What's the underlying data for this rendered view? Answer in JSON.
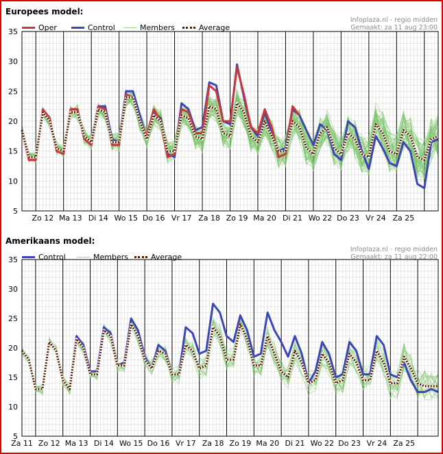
{
  "colors": {
    "frame": "#e00000",
    "oper": "#c8383a",
    "control": "#3b46b4",
    "members": "#7cc56a",
    "average": "#5a1a00",
    "average_gap": "#ffffff",
    "grid_minor": "#e2e2e2",
    "grid_day": "#000000"
  },
  "chart_data": [
    {
      "type": "line",
      "title": "Europees model:",
      "source": "Infoplaza.nl - regio midden",
      "made": "Gemaakt: za 11 aug 23:00",
      "legend": [
        "Oper",
        "Control",
        "Members",
        "Average"
      ],
      "ylim": [
        5,
        35
      ],
      "yticks": [
        5,
        10,
        15,
        20,
        25,
        30,
        35
      ],
      "xlim": [
        0,
        30
      ],
      "day_lines": [
        3,
        6,
        9,
        12,
        15,
        18,
        21,
        24,
        27,
        30,
        33,
        36,
        39,
        42,
        45,
        48,
        51,
        54,
        57
      ],
      "day_labels": [
        {
          "label": "Zo 12",
          "x": 1.5
        },
        {
          "label": "Ma 13",
          "x": 3.5
        },
        {
          "label": "Di 14",
          "x": 5.5
        },
        {
          "label": "Wo 15",
          "x": 7.5
        },
        {
          "label": "Do 16",
          "x": 9.5
        },
        {
          "label": "Vr 17",
          "x": 11.5
        },
        {
          "label": "Za 18",
          "x": 13.5
        },
        {
          "label": "Zo 19",
          "x": 15.5
        },
        {
          "label": "Ma 20",
          "x": 17.5
        },
        {
          "label": "Di 21",
          "x": 19.5
        },
        {
          "label": "Wo 22",
          "x": 21.5
        },
        {
          "label": "Do 23",
          "x": 23.5
        },
        {
          "label": "Vr 24",
          "x": 25.5
        },
        {
          "label": "Za 25",
          "x": 27.5
        }
      ],
      "day_boundaries": [
        1,
        3,
        5,
        7,
        9,
        11,
        13,
        15,
        17,
        19,
        21,
        23,
        25,
        27,
        29,
        30
      ],
      "series": [
        {
          "name": "Control",
          "x": [
            0,
            0.5,
            1,
            1.5,
            2,
            2.5,
            3,
            3.5,
            4,
            4.5,
            5,
            5.5,
            6,
            6.5,
            7,
            7.5,
            8,
            8.5,
            9,
            9.5,
            10,
            10.5,
            11,
            11.5,
            12,
            12.5,
            13,
            13.5,
            14,
            14.5,
            15,
            15.5,
            16,
            16.5,
            17,
            17.5,
            18,
            18.5,
            19,
            19.5,
            20,
            20.5,
            21,
            21.5,
            22,
            22.5,
            23,
            23.5,
            24,
            24.5,
            25,
            25.5,
            26,
            26.5,
            27,
            27.5,
            28,
            28.5,
            29,
            29.5,
            30
          ],
          "values": [
            18.5,
            14,
            14,
            21.5,
            20,
            15.5,
            15,
            21.5,
            21.5,
            17.5,
            16.5,
            22.5,
            22.5,
            17,
            16.5,
            25,
            25,
            21,
            17,
            21.5,
            20.5,
            14.5,
            14,
            23,
            22,
            18.5,
            19,
            26.5,
            26,
            20,
            19.5,
            29.5,
            24,
            19,
            17.5,
            21.5,
            18,
            15,
            15.5,
            22,
            21,
            18.5,
            16,
            19.5,
            18.5,
            14.5,
            13.5,
            20,
            19,
            15,
            12,
            17.5,
            15.5,
            13,
            12.5,
            16.5,
            15,
            9.5,
            8.8,
            16.5,
            17
          ]
        },
        {
          "name": "Oper",
          "x": [
            0,
            0.5,
            1,
            1.5,
            2,
            2.5,
            3,
            3.5,
            4,
            4.5,
            5,
            5.5,
            6,
            6.5,
            7,
            7.5,
            8,
            8.5,
            9,
            9.5,
            10,
            10.5,
            11,
            11.5,
            12,
            12.5,
            13,
            13.5,
            14,
            14.5,
            15,
            15.5,
            16,
            16.5,
            17,
            17.5,
            18,
            18.5,
            19,
            19.5,
            20
          ],
          "values": [
            18.5,
            13.5,
            13.5,
            22,
            20.5,
            15,
            14.5,
            22,
            22,
            17,
            16,
            22.5,
            22,
            16,
            16,
            24.5,
            24,
            20,
            17.5,
            22,
            20,
            14,
            14.5,
            22,
            21.5,
            18,
            18,
            26,
            25,
            20,
            20,
            29,
            24.5,
            19,
            18,
            22,
            19,
            14,
            14.5,
            22.5,
            21
          ]
        },
        {
          "name": "Average",
          "x": [
            0,
            0.5,
            1,
            1.5,
            2,
            2.5,
            3,
            3.5,
            4,
            4.5,
            5,
            5.5,
            6,
            6.5,
            7,
            7.5,
            8,
            8.5,
            9,
            9.5,
            10,
            10.5,
            11,
            11.5,
            12,
            12.5,
            13,
            13.5,
            14,
            14.5,
            15,
            15.5,
            16,
            16.5,
            17,
            17.5,
            18,
            18.5,
            19,
            19.5,
            20,
            20.5,
            21,
            21.5,
            22,
            22.5,
            23,
            23.5,
            24,
            24.5,
            25,
            25.5,
            26,
            26.5,
            27,
            27.5,
            28,
            28.5,
            29,
            29.5,
            30
          ],
          "values": [
            18.5,
            14,
            14,
            21.5,
            20,
            15.5,
            15,
            21.5,
            21.5,
            17.5,
            16.5,
            22,
            21.5,
            16.5,
            16.5,
            24,
            24,
            20,
            17,
            21,
            20,
            15,
            15,
            21,
            20.5,
            17.5,
            17,
            22.5,
            22,
            18,
            17.5,
            23,
            21.5,
            17.5,
            16.5,
            20,
            17.5,
            15,
            15,
            20,
            19,
            15.5,
            14.5,
            18,
            19,
            15.5,
            14.5,
            18,
            17,
            14.5,
            14,
            19.5,
            18,
            15,
            14.5,
            18.5,
            17.5,
            14,
            13.5,
            17,
            17.5
          ]
        }
      ],
      "members_note": "about 50 thin green ensemble member lines spreading around the average"
    },
    {
      "type": "line",
      "title": "Amerikaans model:",
      "source": "Infoplaza.nl - regio midden",
      "made": "Gemaakt: za 11 aug 22:00",
      "legend": [
        "Control",
        "Members",
        "Average"
      ],
      "ylim": [
        5,
        35
      ],
      "yticks": [
        5,
        10,
        15,
        20,
        25,
        30,
        35
      ],
      "xlim": [
        0,
        30.5
      ],
      "day_labels": [
        {
          "label": "Za 11",
          "x": 0
        },
        {
          "label": "Zo 12",
          "x": 2
        },
        {
          "label": "Ma 13",
          "x": 4
        },
        {
          "label": "Di 14",
          "x": 6
        },
        {
          "label": "Wo 15",
          "x": 8
        },
        {
          "label": "Do 16",
          "x": 10
        },
        {
          "label": "Vr 17",
          "x": 12
        },
        {
          "label": "Za 18",
          "x": 14
        },
        {
          "label": "Zo 19",
          "x": 16
        },
        {
          "label": "Ma 20",
          "x": 18
        },
        {
          "label": "Di 21",
          "x": 20
        },
        {
          "label": "Wo 22",
          "x": 22
        },
        {
          "label": "Do 23",
          "x": 24
        },
        {
          "label": "Vr 24",
          "x": 26
        },
        {
          "label": "Za 25",
          "x": 28
        }
      ],
      "day_boundaries": [
        1,
        3,
        5,
        7,
        9,
        11,
        13,
        15,
        17,
        19,
        21,
        23,
        25,
        27,
        29
      ],
      "series": [
        {
          "name": "Control",
          "x": [
            0,
            0.5,
            1,
            1.5,
            2,
            2.5,
            3,
            3.5,
            4,
            4.5,
            5,
            5.5,
            6,
            6.5,
            7,
            7.5,
            8,
            8.5,
            9,
            9.5,
            10,
            10.5,
            11,
            11.5,
            12,
            12.5,
            13,
            13.5,
            14,
            14.5,
            15,
            15.5,
            16,
            16.5,
            17,
            17.5,
            18,
            18.5,
            19,
            19.5,
            20,
            20.5,
            21,
            21.5,
            22,
            22.5,
            23,
            23.5,
            24,
            24.5,
            25,
            25.5,
            26,
            26.5,
            27,
            27.5,
            28,
            28.5,
            29,
            29.5,
            30,
            30.5
          ],
          "values": [
            19.5,
            18,
            13,
            13,
            21,
            19.5,
            14.5,
            13,
            22,
            20.5,
            16,
            16,
            23.5,
            22.5,
            17,
            17.5,
            25,
            23,
            18.5,
            16.5,
            20.5,
            19.5,
            15.5,
            15.5,
            23.5,
            22.5,
            19,
            19.5,
            27.5,
            26,
            22,
            21,
            25.5,
            23,
            18.5,
            19,
            26,
            23,
            21,
            18.5,
            22,
            19,
            14,
            16,
            21,
            19,
            15,
            15.5,
            21,
            19.5,
            15.5,
            15.5,
            22,
            20.5,
            15.5,
            15,
            17.5,
            14.5,
            12.5,
            12.5,
            13,
            12.5
          ]
        },
        {
          "name": "Average",
          "x": [
            0,
            0.5,
            1,
            1.5,
            2,
            2.5,
            3,
            3.5,
            4,
            4.5,
            5,
            5.5,
            6,
            6.5,
            7,
            7.5,
            8,
            8.5,
            9,
            9.5,
            10,
            10.5,
            11,
            11.5,
            12,
            12.5,
            13,
            13.5,
            14,
            14.5,
            15,
            15.5,
            16,
            16.5,
            17,
            17.5,
            18,
            18.5,
            19,
            19.5,
            20,
            20.5,
            21,
            21.5,
            22,
            22.5,
            23,
            23.5,
            24,
            24.5,
            25,
            25.5,
            26,
            26.5,
            27,
            27.5,
            28,
            28.5,
            29,
            29.5,
            30,
            30.5
          ],
          "values": [
            19.5,
            18,
            13,
            13,
            21,
            19.5,
            14.5,
            13,
            21.5,
            20,
            15.5,
            15.5,
            23,
            22,
            17,
            17,
            24,
            22,
            18,
            16.5,
            19.5,
            19,
            15.5,
            15.5,
            20.5,
            19.5,
            16.5,
            17,
            23.5,
            22,
            18,
            18,
            24,
            21.5,
            17,
            17,
            22,
            19,
            16,
            15,
            19.5,
            17.5,
            14,
            14.5,
            19,
            17.5,
            14,
            14.5,
            19,
            17.5,
            14.5,
            14.5,
            19.5,
            17.5,
            14,
            14,
            18.5,
            16.5,
            14,
            13.5,
            13.5,
            13.5
          ]
        }
      ],
      "members_note": "about 20 thin green ensemble member lines spreading around the average"
    }
  ]
}
